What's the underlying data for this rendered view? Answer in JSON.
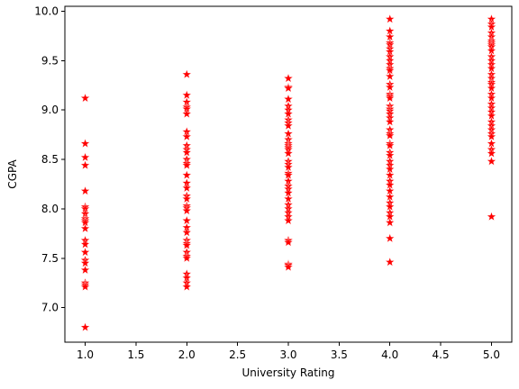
{
  "chart_data": {
    "type": "scatter",
    "title": "",
    "xlabel": "University Rating",
    "ylabel": "CGPA",
    "xlim": [
      0.8,
      5.2
    ],
    "ylim": [
      6.65,
      10.05
    ],
    "xticks": [
      1.0,
      1.5,
      2.0,
      2.5,
      3.0,
      3.5,
      4.0,
      4.5,
      5.0
    ],
    "xtick_labels": [
      "1.0",
      "1.5",
      "2.0",
      "2.5",
      "3.0",
      "3.5",
      "4.0",
      "4.5",
      "5.0"
    ],
    "yticks": [
      7.0,
      7.5,
      8.0,
      8.5,
      9.0,
      9.5,
      10.0
    ],
    "ytick_labels": [
      "7.0",
      "7.5",
      "8.0",
      "8.5",
      "9.0",
      "9.5",
      "10.0"
    ],
    "grid": false,
    "marker": "star",
    "marker_color": "#ff0000",
    "series": [
      {
        "x": 1,
        "y": [
          9.12,
          8.66,
          8.52,
          8.44,
          8.18,
          8.02,
          8.0,
          7.95,
          7.9,
          7.88,
          7.86,
          7.8,
          7.68,
          7.64,
          7.56,
          7.48,
          7.45,
          7.38,
          7.25,
          7.23,
          7.21,
          6.8
        ]
      },
      {
        "x": 2,
        "y": [
          9.36,
          9.15,
          9.08,
          9.03,
          9.01,
          8.96,
          8.78,
          8.73,
          8.64,
          8.6,
          8.57,
          8.5,
          8.46,
          8.44,
          8.34,
          8.26,
          8.21,
          8.13,
          8.1,
          8.03,
          8.01,
          7.98,
          7.88,
          7.81,
          7.76,
          7.68,
          7.65,
          7.63,
          7.56,
          7.52,
          7.5,
          7.34,
          7.3,
          7.25,
          7.21
        ]
      },
      {
        "x": 3,
        "y": [
          9.32,
          9.23,
          9.22,
          9.11,
          9.04,
          9.0,
          8.96,
          8.9,
          8.87,
          8.84,
          8.76,
          8.7,
          8.66,
          8.64,
          8.62,
          8.6,
          8.56,
          8.48,
          8.45,
          8.42,
          8.36,
          8.34,
          8.28,
          8.23,
          8.2,
          8.16,
          8.1,
          8.04,
          8.0,
          7.96,
          7.92,
          7.88,
          7.68,
          7.66,
          7.44,
          7.43,
          7.41
        ]
      },
      {
        "x": 4,
        "y": [
          9.92,
          9.8,
          9.74,
          9.68,
          9.66,
          9.62,
          9.59,
          9.54,
          9.5,
          9.46,
          9.42,
          9.4,
          9.34,
          9.26,
          9.23,
          9.16,
          9.14,
          9.12,
          9.04,
          9.01,
          8.99,
          8.96,
          8.92,
          8.88,
          8.8,
          8.76,
          8.74,
          8.66,
          8.64,
          8.57,
          8.54,
          8.48,
          8.44,
          8.4,
          8.34,
          8.28,
          8.24,
          8.18,
          8.12,
          8.06,
          8.02,
          7.96,
          7.92,
          7.86,
          7.7,
          7.46
        ]
      },
      {
        "x": 5,
        "y": [
          9.92,
          9.87,
          9.84,
          9.78,
          9.74,
          9.7,
          9.68,
          9.66,
          9.64,
          9.6,
          9.54,
          9.5,
          9.46,
          9.42,
          9.36,
          9.32,
          9.28,
          9.26,
          9.22,
          9.16,
          9.12,
          9.06,
          9.02,
          8.98,
          8.94,
          8.88,
          8.84,
          8.8,
          8.76,
          8.73,
          8.66,
          8.6,
          8.56,
          8.48,
          7.92
        ]
      }
    ]
  }
}
